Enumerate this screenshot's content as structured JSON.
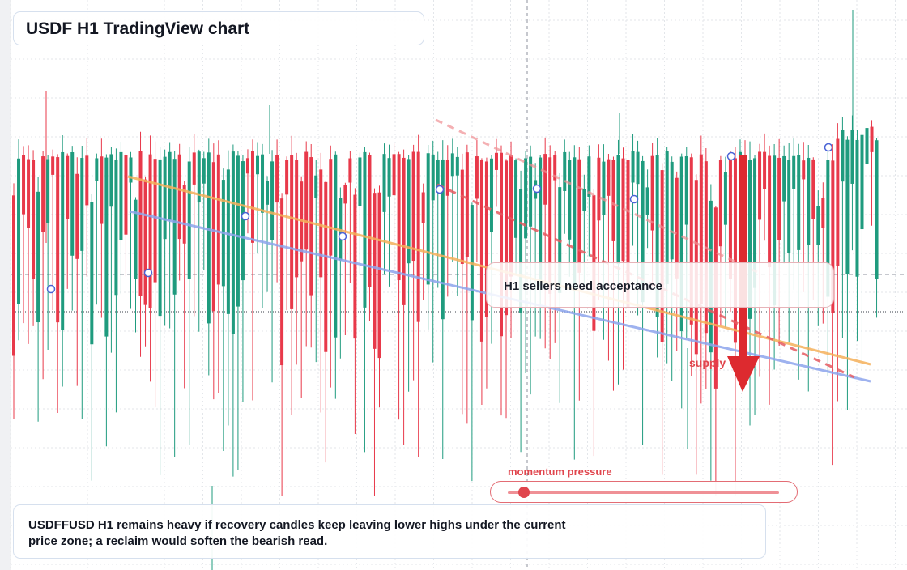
{
  "header": {
    "title": "USDF H1 TradingView chart"
  },
  "callout": {
    "text": "H1 sellers need acceptance"
  },
  "supply_label": "supply",
  "momentum": {
    "label": "momentum pressure",
    "level": 0.06
  },
  "summary": {
    "text": "USDFFUSD H1 remains heavy if recovery candles keep leaving lower highs under the current price zone; a reclaim would soften the bearish read."
  },
  "colors": {
    "bull": "#1f9b7e",
    "bear": "#e8394a",
    "trend_orange": "#f5b05a",
    "trend_blue": "#8da4ec",
    "dashed_red": "#e55a60",
    "arrow": "#dd2a2f"
  },
  "chart_data": {
    "type": "candlestick",
    "symbol": "USDFFUSD",
    "timeframe": "H1",
    "grid": true,
    "axes_labeled": false,
    "candle_count": 178,
    "annotations": [
      "orange descending trendline",
      "blue descending trendline",
      "red dashed descending line",
      "red arrow pointing down into supply"
    ]
  }
}
